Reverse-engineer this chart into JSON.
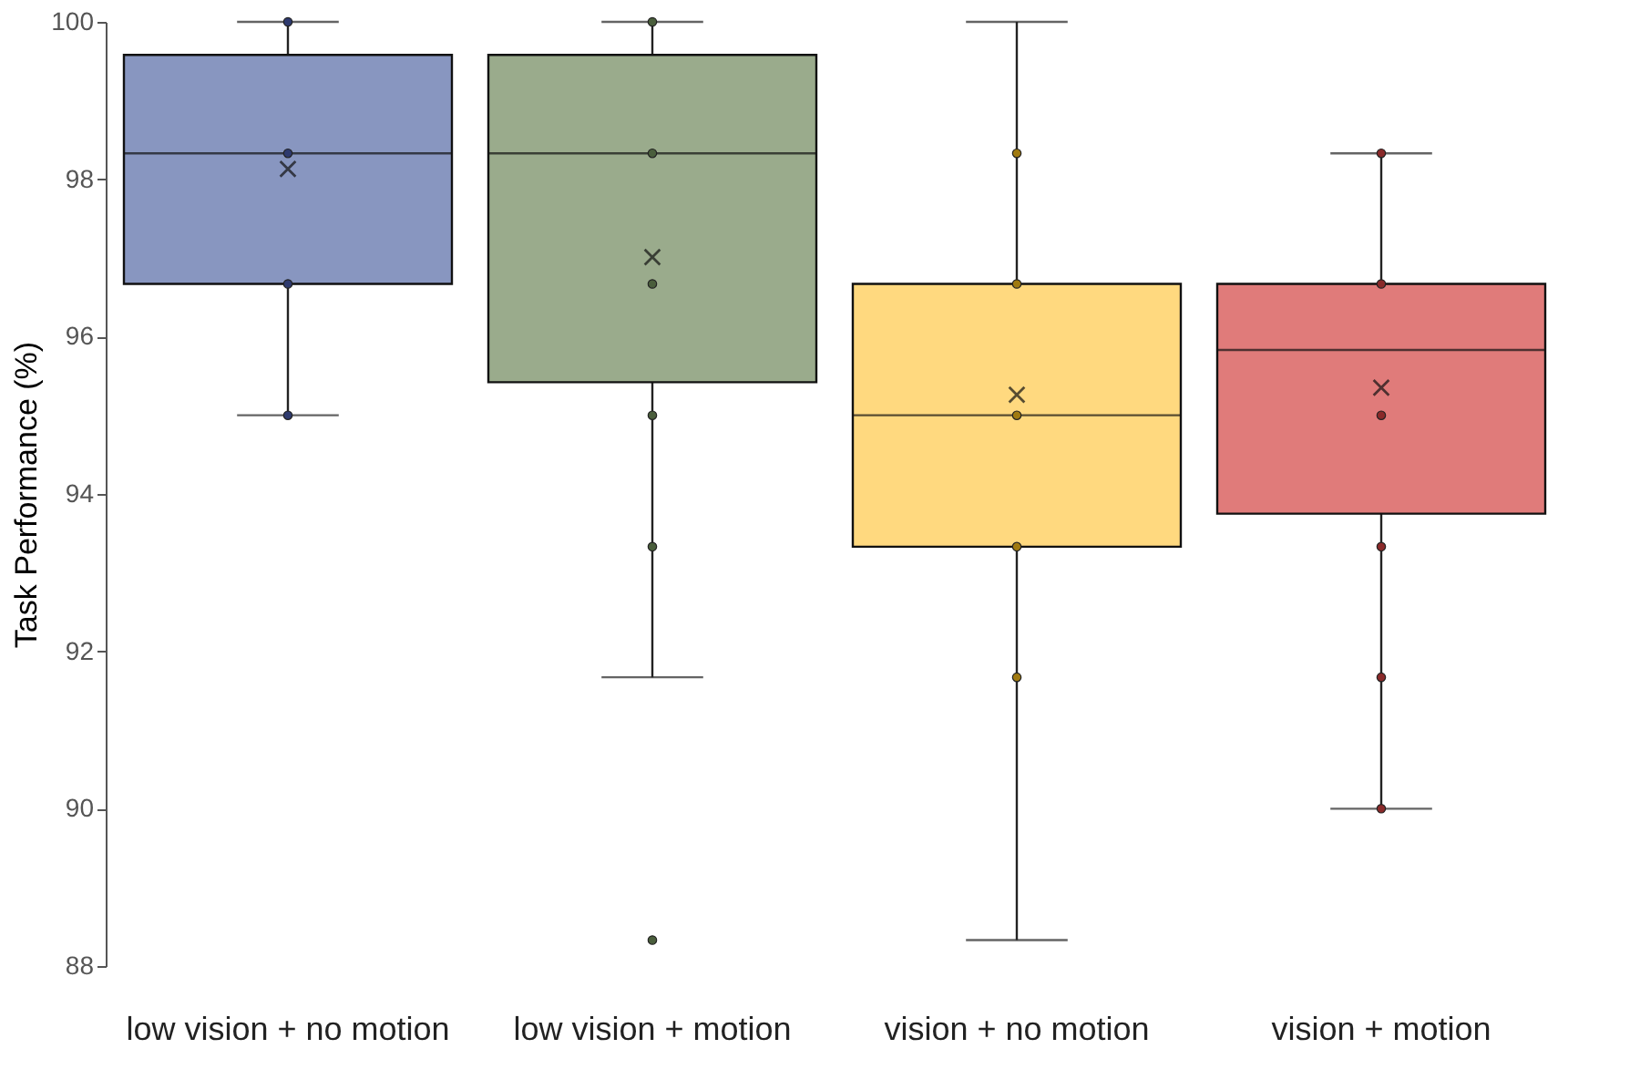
{
  "chart_data": {
    "type": "box",
    "ylabel": "Task Performance (%)",
    "categories": [
      "low vision + no motion",
      "low vision + motion",
      "vision + no motion",
      "vision + motion"
    ],
    "colors": [
      "#8896c0",
      "#9aab8c",
      "#ffd97f",
      "#e07b7a"
    ],
    "boxes": [
      {
        "low": 95,
        "q1": 96.67,
        "median": 98.33,
        "q3": 99.58,
        "high": 100,
        "mean": 98.13
      },
      {
        "low": 91.67,
        "q1": 95.42,
        "median": 98.33,
        "q3": 99.58,
        "high": 100,
        "mean": 97.01,
        "outliers": [
          88.33
        ]
      },
      {
        "low": 88.33,
        "q1": 93.33,
        "median": 95,
        "q3": 96.67,
        "high": 100,
        "mean": 95.26
      },
      {
        "low": 90,
        "q1": 93.75,
        "median": 95.83,
        "q3": 96.67,
        "high": 98.33,
        "mean": 95.35
      }
    ],
    "series": [
      {
        "type": "scatter",
        "color": "#2e3a6e",
        "x": [
          "low vision + no motion",
          "low vision + no motion",
          "low vision + no motion",
          "low vision + no motion"
        ],
        "values": [
          100,
          98.33,
          96.67,
          95
        ]
      },
      {
        "type": "scatter",
        "color": "#4a5e3c",
        "x": [
          "low vision + motion",
          "low vision + motion",
          "low vision + motion",
          "low vision + motion",
          "low vision + motion"
        ],
        "values": [
          100,
          98.33,
          96.67,
          95,
          93.33
        ]
      },
      {
        "type": "scatter",
        "color": "#a07a10",
        "x": [
          "vision + no motion",
          "vision + no motion",
          "vision + no motion",
          "vision + no motion",
          "vision + no motion"
        ],
        "values": [
          98.33,
          96.67,
          95,
          93.33,
          91.67
        ]
      },
      {
        "type": "scatter",
        "color": "#8a2a2a",
        "x": [
          "vision + motion",
          "vision + motion",
          "vision + motion",
          "vision + motion",
          "vision + motion",
          "vision + motion"
        ],
        "values": [
          98.33,
          96.67,
          95,
          93.33,
          91.67,
          90
        ]
      }
    ],
    "ylim": [
      88,
      100
    ],
    "yticks": [
      88,
      90,
      92,
      94,
      96,
      98,
      100
    ],
    "grid": false
  }
}
